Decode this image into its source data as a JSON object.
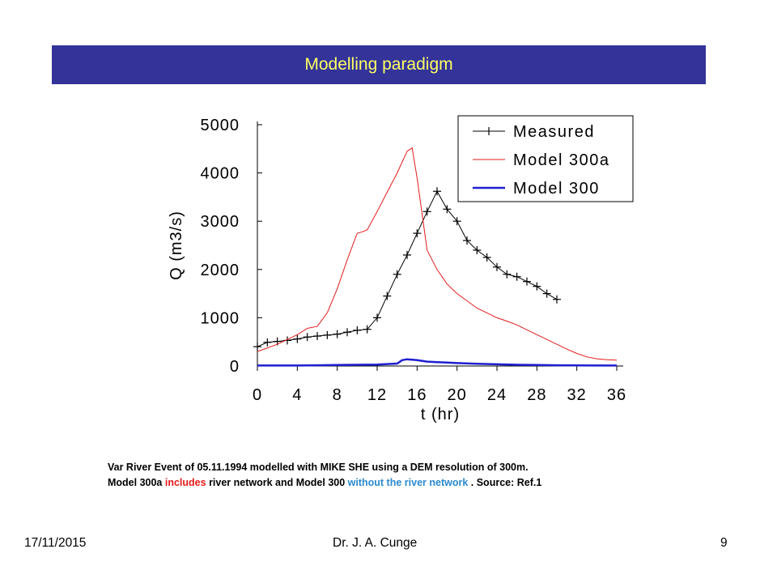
{
  "slide": {
    "title": "Modelling paradigm",
    "caption": {
      "line1": "Var River Event of 05.11.1994 modelled with MIKE SHE using a DEM resolution of 300m.",
      "line2_part1": "Model 300a ",
      "line2_part2": "includes",
      "line2_part3": " river network and Model 300 ",
      "line2_part4": "without the river network",
      "line2_part5": " .  Source: Ref.1"
    },
    "footer": {
      "date": "17/11/2015",
      "author": "Dr. J. A. Cunge",
      "page": "9"
    }
  },
  "colors": {
    "title_bg": "#333399",
    "title_text": "#ffff66",
    "model300a": "#e31b1b",
    "model300": "#1f1fd0",
    "measured": "#000000"
  },
  "chart_data": {
    "type": "line",
    "xlabel": "t (hr)",
    "ylabel": "Q (m3/s)",
    "xlim": [
      0,
      36
    ],
    "ylim": [
      0,
      5000
    ],
    "xticks": [
      0,
      4,
      8,
      12,
      16,
      20,
      24,
      28,
      32,
      36
    ],
    "yticks": [
      0,
      1000,
      2000,
      3000,
      4000,
      5000
    ],
    "legend_position": "top-right",
    "series": [
      {
        "name": "Measured",
        "marker": "plus",
        "x": [
          0,
          1,
          2,
          3,
          4,
          5,
          6,
          7,
          8,
          9,
          10,
          11,
          12,
          13,
          14,
          15,
          16,
          17,
          18,
          19,
          20,
          21,
          22,
          23,
          24,
          25,
          26,
          27,
          28,
          29,
          30
        ],
        "y": [
          400,
          490,
          510,
          530,
          560,
          600,
          620,
          640,
          660,
          700,
          740,
          760,
          1000,
          1450,
          1900,
          2300,
          2750,
          3200,
          3620,
          3250,
          3000,
          2600,
          2400,
          2250,
          2050,
          1900,
          1850,
          1750,
          1650,
          1500,
          1380
        ]
      },
      {
        "name": "Model 300a",
        "x": [
          0,
          2,
          4,
          5,
          6,
          7,
          8,
          9,
          10,
          10.5,
          11,
          12,
          13,
          14,
          15,
          15.5,
          16,
          17,
          18,
          19,
          20,
          21,
          22,
          23,
          24,
          25,
          26,
          27,
          28,
          29,
          30,
          31,
          32,
          33,
          34,
          35,
          36
        ],
        "y": [
          300,
          450,
          650,
          780,
          820,
          1100,
          1600,
          2200,
          2750,
          2780,
          2820,
          3200,
          3600,
          4000,
          4450,
          4520,
          3900,
          2400,
          2000,
          1700,
          1500,
          1350,
          1200,
          1100,
          1000,
          930,
          850,
          750,
          650,
          550,
          450,
          350,
          260,
          190,
          150,
          130,
          120
        ]
      },
      {
        "name": "Model 300",
        "x": [
          0,
          2,
          4,
          6,
          8,
          10,
          12,
          13,
          14,
          14.5,
          15,
          16,
          17,
          18,
          19,
          20,
          22,
          24,
          26,
          28,
          30,
          32,
          34,
          36
        ],
        "y": [
          10,
          10,
          10,
          15,
          20,
          25,
          30,
          40,
          50,
          120,
          140,
          120,
          90,
          80,
          70,
          60,
          45,
          35,
          25,
          20,
          15,
          12,
          10,
          10
        ]
      }
    ]
  }
}
